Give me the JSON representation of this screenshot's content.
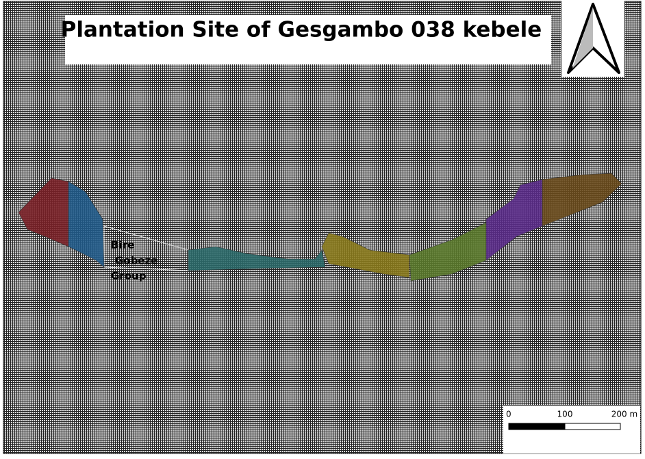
{
  "title": "Plantation Site of Gesgambo 038 kebele",
  "site_label": [
    "Bire",
    "Gobeze",
    "Group"
  ],
  "scale_bar": {
    "labels": [
      "0",
      "100",
      "200 m"
    ]
  }
}
